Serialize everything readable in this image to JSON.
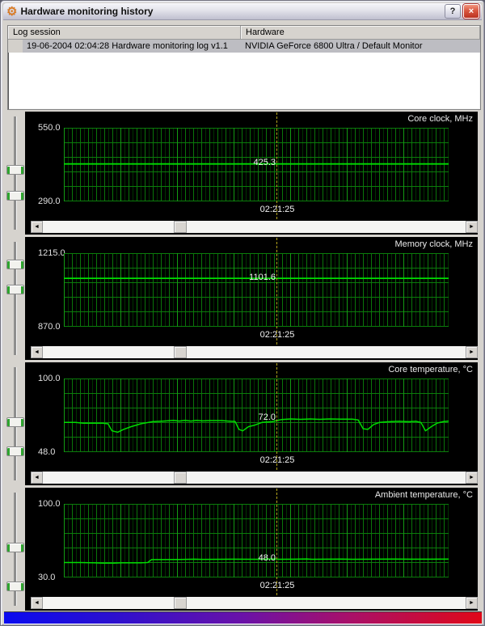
{
  "window": {
    "title": "Hardware monitoring history",
    "icons": {
      "gear": "⚙",
      "help": "?",
      "close": "×",
      "scroll_left": "◄",
      "scroll_right": "►"
    }
  },
  "list": {
    "columns": [
      "Log session",
      "Hardware"
    ],
    "rows": [
      [
        "19-06-2004 02:04:28 Hardware monitoring log v1.1",
        "NVIDIA GeForce 6800 Ultra / Default Monitor"
      ]
    ]
  },
  "charts": [
    {
      "title": "Core clock, MHz",
      "y_max": "550.0",
      "y_min": "290.0",
      "value": "425.3",
      "time": "02:21:25"
    },
    {
      "title": "Memory clock, MHz",
      "y_max": "1215.0",
      "y_min": "870.0",
      "value": "1101.6",
      "time": "02:21:25"
    },
    {
      "title": "Core temperature, °C",
      "y_max": "100.0",
      "y_min": "48.0",
      "value": "72.0",
      "time": "02:21:25"
    },
    {
      "title": "Ambient temperature, °C",
      "y_max": "100.0",
      "y_min": "30.0",
      "value": "48.0",
      "time": "02:21:25"
    }
  ],
  "chart_data": [
    {
      "type": "line",
      "title": "Core clock, MHz",
      "ylim": [
        290,
        550
      ],
      "cursor_time": "02:21:25",
      "cursor_value": 425.3,
      "series": [
        {
          "name": "Core clock",
          "points": [
            [
              0,
              425.3
            ],
            [
              1,
              425.3
            ]
          ]
        }
      ]
    },
    {
      "type": "line",
      "title": "Memory clock, MHz",
      "ylim": [
        870,
        1215
      ],
      "cursor_time": "02:21:25",
      "cursor_value": 1101.6,
      "series": [
        {
          "name": "Memory clock",
          "points": [
            [
              0,
              1101.6
            ],
            [
              1,
              1101.6
            ]
          ]
        }
      ]
    },
    {
      "type": "line",
      "title": "Core temperature, °C",
      "ylim": [
        48,
        100
      ],
      "cursor_time": "02:21:25",
      "cursor_value": 72.0,
      "series": [
        {
          "name": "Core temperature",
          "points": [
            [
              0,
              69.5
            ],
            [
              0.03,
              69.5
            ],
            [
              0.05,
              69
            ],
            [
              0.1,
              69
            ],
            [
              0.115,
              68.5
            ],
            [
              0.125,
              63.5
            ],
            [
              0.14,
              62.5
            ],
            [
              0.155,
              64.5
            ],
            [
              0.175,
              66.5
            ],
            [
              0.2,
              68.5
            ],
            [
              0.23,
              70
            ],
            [
              0.26,
              70.5
            ],
            [
              0.285,
              71
            ],
            [
              0.3,
              70.5
            ],
            [
              0.315,
              71
            ],
            [
              0.33,
              70.5
            ],
            [
              0.345,
              71
            ],
            [
              0.36,
              70.6
            ],
            [
              0.38,
              70.8
            ],
            [
              0.41,
              70.8
            ],
            [
              0.43,
              70.4
            ],
            [
              0.445,
              70.2
            ],
            [
              0.455,
              64.5
            ],
            [
              0.465,
              63.5
            ],
            [
              0.48,
              66.5
            ],
            [
              0.495,
              67.5
            ],
            [
              0.515,
              69.5
            ],
            [
              0.54,
              70
            ],
            [
              0.565,
              71.5
            ],
            [
              0.59,
              72
            ],
            [
              0.615,
              71.7
            ],
            [
              0.64,
              72
            ],
            [
              0.665,
              71.7
            ],
            [
              0.69,
              72
            ],
            [
              0.72,
              71.8
            ],
            [
              0.75,
              71.8
            ],
            [
              0.765,
              71.3
            ],
            [
              0.778,
              65
            ],
            [
              0.79,
              64.5
            ],
            [
              0.805,
              68
            ],
            [
              0.82,
              69.5
            ],
            [
              0.845,
              70
            ],
            [
              0.87,
              70.3
            ],
            [
              0.895,
              70
            ],
            [
              0.915,
              70.3
            ],
            [
              0.928,
              69.5
            ],
            [
              0.94,
              63.5
            ],
            [
              0.955,
              66.5
            ],
            [
              0.97,
              69
            ],
            [
              0.985,
              70
            ],
            [
              1,
              70.5
            ]
          ]
        }
      ]
    },
    {
      "type": "line",
      "title": "Ambient temperature, °C",
      "ylim": [
        30,
        100
      ],
      "cursor_time": "02:21:25",
      "cursor_value": 48.0,
      "series": [
        {
          "name": "Ambient temperature",
          "points": [
            [
              0,
              44.8
            ],
            [
              0.04,
              44.8
            ],
            [
              0.08,
              44.5
            ],
            [
              0.1,
              44.2
            ],
            [
              0.13,
              44.2
            ],
            [
              0.15,
              44.5
            ],
            [
              0.2,
              44.5
            ],
            [
              0.218,
              44.8
            ],
            [
              0.228,
              47.6
            ],
            [
              0.3,
              47.7
            ],
            [
              0.34,
              48
            ],
            [
              0.36,
              47.8
            ],
            [
              0.44,
              48
            ],
            [
              0.5,
              47.9
            ],
            [
              0.545,
              48.2
            ],
            [
              0.56,
              47.9
            ],
            [
              0.6,
              48
            ],
            [
              0.63,
              48.2
            ],
            [
              0.645,
              47.9
            ],
            [
              0.68,
              48
            ],
            [
              0.72,
              48.1
            ],
            [
              0.75,
              47.9
            ],
            [
              0.8,
              48
            ],
            [
              0.86,
              48.1
            ],
            [
              0.9,
              48
            ],
            [
              0.95,
              48
            ],
            [
              1,
              48.1
            ]
          ]
        }
      ]
    }
  ],
  "colors": {
    "trace_green": "#00DC00",
    "grid_green": "#0B7A0B",
    "cursor_yellow": "#B4A41C",
    "panel_black": "#000000",
    "window_silver": "#D6D3CE",
    "close_red": "#D95741",
    "gradient_left": "#0A0AF0",
    "gradient_mid": "#6A12A8",
    "gradient_right": "#E00818"
  }
}
